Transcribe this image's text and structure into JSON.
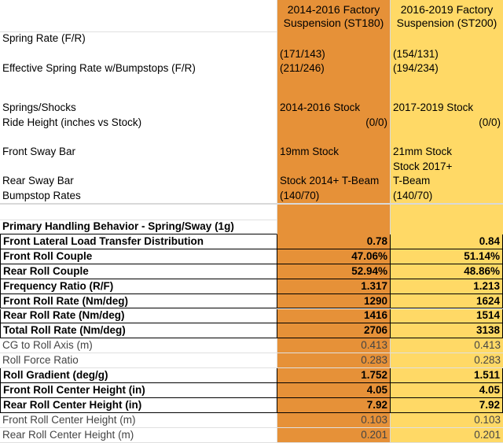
{
  "header": {
    "col1": [
      "2014-2016 Factory",
      "Suspension (ST180)"
    ],
    "col2": [
      "2016-2019 Factory",
      "Suspension (ST200)"
    ]
  },
  "setup": [
    {
      "label": "Spring Rate (F/R)",
      "v1": "(171/143)",
      "v2": "(154/131)"
    },
    {
      "label": "Effective Spring Rate w/Bumpstops (F/R)",
      "v1": "(211/246)",
      "v2": "(194/234)"
    },
    {
      "label": "Springs/Shocks",
      "v1": "2014-2016 Stock",
      "v2": "2017-2019 Stock"
    },
    {
      "label": "Ride Height (inches vs Stock)",
      "v1": "(0/0)",
      "v2": "(0/0)"
    },
    {
      "label": "Front Sway Bar",
      "v1": "19mm Stock",
      "v2": "21mm Stock"
    },
    {
      "label": "Rear Sway Bar",
      "v1": "Stock 2014+ T-Beam",
      "v2a": "Stock 2017+",
      "v2b": "T-Beam"
    },
    {
      "label": "Bumpstop Rates",
      "v1": "(140/70)",
      "v2": "(140/70)"
    }
  ],
  "section_title": "Primary Handling Behavior - Spring/Sway (1g)",
  "metrics": [
    {
      "label": "Front Lateral Load Transfer Distribution",
      "v1": "0.78",
      "v2": "0.84",
      "bold": true
    },
    {
      "label": "Front Roll Couple",
      "v1": "47.06%",
      "v2": "51.14%",
      "bold": true
    },
    {
      "label": "Rear Roll Couple",
      "v1": "52.94%",
      "v2": "48.86%",
      "bold": true
    },
    {
      "label": "Frequency Ratio (R/F)",
      "v1": "1.317",
      "v2": "1.213",
      "bold": true
    },
    {
      "label": "Front Roll Rate (Nm/deg)",
      "v1": "1290",
      "v2": "1624",
      "bold": true
    },
    {
      "label": "Rear Roll Rate (Nm/deg)",
      "v1": "1416",
      "v2": "1514",
      "bold": true
    },
    {
      "label": "Total Roll Rate (Nm/deg)",
      "v1": "2706",
      "v2": "3138",
      "bold": true
    },
    {
      "label": "CG to Roll Axis (m)",
      "v1": "0.413",
      "v2": "0.413",
      "bold": false
    },
    {
      "label": "Roll Force Ratio",
      "v1": "0.283",
      "v2": "0.283",
      "bold": false
    },
    {
      "label": "Roll Gradient (deg/g)",
      "v1": "1.752",
      "v2": "1.511",
      "bold": true
    },
    {
      "label": "Front Roll Center Height (in)",
      "v1": "4.05",
      "v2": "4.05",
      "bold": true
    },
    {
      "label": "Rear Roll Center Height (in)",
      "v1": "7.92",
      "v2": "7.92",
      "bold": true
    },
    {
      "label": "Front Roll Center Height (m)",
      "v1": "0.103",
      "v2": "0.103",
      "bold": false
    },
    {
      "label": "Rear Roll Center Height (m)",
      "v1": "0.201",
      "v2": "0.201",
      "bold": false
    }
  ],
  "colors": {
    "col1_fill": "#e69138",
    "col2_fill": "#ffd966"
  }
}
